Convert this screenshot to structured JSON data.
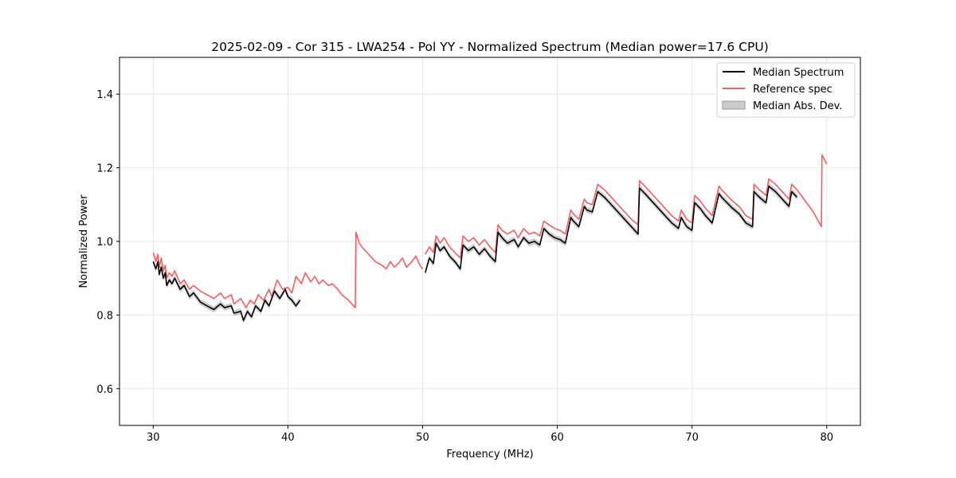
{
  "chart_data": {
    "type": "line",
    "title": "2025-02-09 - Cor 315 - LWA254 - Pol YY - Normalized Spectrum (Median power=17.6 CPU)",
    "xlabel": "Frequency (MHz)",
    "ylabel": "Normalized Power",
    "xlim": [
      27.5,
      82.5
    ],
    "ylim": [
      0.5,
      1.5
    ],
    "xticks": [
      30,
      40,
      50,
      60,
      70,
      80
    ],
    "yticks": [
      0.6,
      0.8,
      1.0,
      1.2,
      1.4
    ],
    "xtick_labels": [
      "30",
      "40",
      "50",
      "60",
      "70",
      "80"
    ],
    "ytick_labels": [
      "0.6",
      "0.8",
      "1.0",
      "1.2",
      "1.4"
    ],
    "grid": true,
    "legend_position": "top-right",
    "legend": [
      "Median Spectrum",
      "Reference spec",
      "Median Abs. Dev."
    ],
    "colors": {
      "median": "#000000",
      "reference": "#f06060",
      "mad_fill": "#999999"
    },
    "series": [
      {
        "name": "Reference spec",
        "color": "#f06060",
        "segments": [
          {
            "x": [
              30.0,
              30.2,
              30.35,
              30.45,
              30.6,
              30.75,
              30.9,
              31.0,
              31.2,
              31.4,
              31.6,
              32.0,
              32.3,
              32.7,
              33.0,
              33.5,
              34.0,
              34.5,
              35.0,
              35.3,
              35.8,
              36.0,
              36.5,
              36.9,
              37.2,
              37.5,
              37.8,
              38.2,
              38.6,
              38.8,
              39.2,
              39.6,
              40.0,
              40.3,
              40.6,
              41.0,
              41.3,
              41.7,
              42.0,
              42.3,
              42.6,
              43.0,
              43.3,
              43.7,
              44.0,
              44.5,
              45.0,
              45.05,
              45.3,
              45.6,
              46.0,
              46.5,
              47.0,
              47.3,
              47.6,
              47.9,
              48.2,
              48.5,
              48.8,
              49.2,
              49.5,
              49.8,
              50.0
            ],
            "y": [
              0.97,
              0.945,
              0.965,
              0.93,
              0.955,
              0.92,
              0.935,
              0.9,
              0.915,
              0.905,
              0.92,
              0.885,
              0.895,
              0.87,
              0.88,
              0.865,
              0.855,
              0.845,
              0.86,
              0.845,
              0.855,
              0.83,
              0.845,
              0.82,
              0.84,
              0.83,
              0.855,
              0.84,
              0.87,
              0.85,
              0.895,
              0.87,
              0.875,
              0.86,
              0.905,
              0.885,
              0.915,
              0.89,
              0.905,
              0.885,
              0.895,
              0.88,
              0.885,
              0.87,
              0.855,
              0.84,
              0.82,
              1.025,
              0.995,
              0.98,
              0.965,
              0.945,
              0.935,
              0.925,
              0.945,
              0.93,
              0.94,
              0.955,
              0.93,
              0.945,
              0.96,
              0.935,
              0.925
            ]
          },
          {
            "x": [
              50.2,
              50.5,
              50.8,
              51.0,
              51.3,
              51.6,
              52.0,
              52.4,
              52.8,
              53.0,
              53.4,
              53.8,
              54.2,
              54.6,
              55.0,
              55.4,
              55.6,
              55.9,
              56.3,
              56.8,
              57.1,
              57.5,
              57.9,
              58.3,
              58.7,
              59.0,
              59.4,
              59.8,
              60.2,
              60.6,
              61.0,
              61.2,
              61.6,
              62.0,
              62.2,
              62.6,
              63.0,
              63.5,
              64.0,
              64.5,
              65.0,
              65.5,
              66.0,
              66.1,
              66.5,
              67.0,
              67.5,
              68.0,
              68.5,
              69.0,
              69.2,
              69.6,
              70.0,
              70.2,
              70.6,
              71.0,
              71.5,
              72.0,
              72.2,
              72.6,
              73.0,
              73.5,
              74.0,
              74.5,
              74.6,
              75.0,
              75.5,
              75.7,
              76.2,
              76.7,
              77.2,
              77.4,
              77.8,
              78.2,
              78.6,
              79.0,
              79.3,
              79.6,
              79.65,
              80.0
            ],
            "y": [
              0.965,
              0.985,
              0.97,
              1.015,
              0.995,
              1.01,
              0.985,
              0.97,
              0.955,
              1.015,
              1.0,
              1.01,
              0.99,
              1.005,
              0.985,
              0.97,
              1.045,
              1.03,
              1.02,
              1.03,
              1.01,
              1.035,
              1.02,
              1.025,
              1.015,
              1.055,
              1.045,
              1.035,
              1.03,
              1.02,
              1.085,
              1.075,
              1.06,
              1.115,
              1.105,
              1.1,
              1.155,
              1.14,
              1.12,
              1.1,
              1.08,
              1.06,
              1.045,
              1.165,
              1.15,
              1.13,
              1.11,
              1.09,
              1.07,
              1.055,
              1.085,
              1.06,
              1.05,
              1.125,
              1.11,
              1.09,
              1.07,
              1.15,
              1.14,
              1.125,
              1.11,
              1.095,
              1.07,
              1.06,
              1.155,
              1.14,
              1.125,
              1.17,
              1.155,
              1.135,
              1.115,
              1.155,
              1.14,
              1.12,
              1.1,
              1.08,
              1.06,
              1.04,
              1.235,
              1.21
            ]
          }
        ]
      },
      {
        "name": "Median Spectrum",
        "color": "#000000",
        "segments": [
          {
            "x": [
              30.0,
              30.2,
              30.35,
              30.45,
              30.6,
              30.75,
              30.9,
              31.0,
              31.2,
              31.4,
              31.6,
              32.0,
              32.3,
              32.7,
              33.0,
              33.5,
              34.0,
              34.5,
              35.0,
              35.3,
              35.8,
              36.0,
              36.5,
              36.7,
              37.0,
              37.3,
              37.6,
              38.0,
              38.3,
              38.6,
              39.0,
              39.4,
              39.8,
              40.0,
              40.3,
              40.6,
              40.9
            ],
            "y": [
              0.945,
              0.925,
              0.945,
              0.91,
              0.93,
              0.9,
              0.915,
              0.88,
              0.895,
              0.885,
              0.9,
              0.87,
              0.88,
              0.85,
              0.86,
              0.835,
              0.825,
              0.815,
              0.83,
              0.82,
              0.825,
              0.805,
              0.81,
              0.785,
              0.81,
              0.795,
              0.825,
              0.81,
              0.84,
              0.825,
              0.865,
              0.845,
              0.87,
              0.85,
              0.84,
              0.825,
              0.84
            ]
          },
          {
            "x": [
              50.2,
              50.5,
              50.8,
              51.0,
              51.3,
              51.6,
              52.0,
              52.4,
              52.8,
              53.0,
              53.4,
              53.8,
              54.2,
              54.6,
              55.0,
              55.4,
              55.6,
              55.9,
              56.3,
              56.8,
              57.1,
              57.5,
              57.9,
              58.3,
              58.7,
              59.0,
              59.4,
              59.8,
              60.2,
              60.6,
              61.0,
              61.2,
              61.6,
              62.0,
              62.2,
              62.6,
              63.0,
              63.5,
              64.0,
              64.5,
              65.0,
              65.5,
              66.0,
              66.1,
              66.5,
              67.0,
              67.5,
              68.0,
              68.5,
              69.0,
              69.2,
              69.6,
              70.0,
              70.2,
              70.6,
              71.0,
              71.5,
              72.0,
              72.2,
              72.6,
              73.0,
              73.5,
              74.0,
              74.5,
              74.6,
              75.0,
              75.5,
              75.7,
              76.2,
              76.7,
              77.2,
              77.4,
              77.8
            ],
            "y": [
              0.915,
              0.955,
              0.94,
              0.995,
              0.975,
              0.985,
              0.96,
              0.945,
              0.925,
              0.99,
              0.975,
              0.985,
              0.965,
              0.98,
              0.96,
              0.945,
              1.025,
              1.01,
              0.995,
              1.005,
              0.985,
              1.01,
              0.995,
              1.0,
              0.99,
              1.035,
              1.02,
              1.01,
              1.005,
              0.995,
              1.065,
              1.055,
              1.04,
              1.095,
              1.085,
              1.08,
              1.135,
              1.12,
              1.1,
              1.08,
              1.06,
              1.04,
              1.02,
              1.145,
              1.13,
              1.11,
              1.09,
              1.07,
              1.05,
              1.035,
              1.065,
              1.04,
              1.03,
              1.105,
              1.09,
              1.07,
              1.05,
              1.13,
              1.12,
              1.105,
              1.09,
              1.075,
              1.05,
              1.04,
              1.135,
              1.12,
              1.105,
              1.15,
              1.135,
              1.115,
              1.095,
              1.135,
              1.12
            ]
          }
        ]
      }
    ],
    "mad_half_width": 0.008
  }
}
